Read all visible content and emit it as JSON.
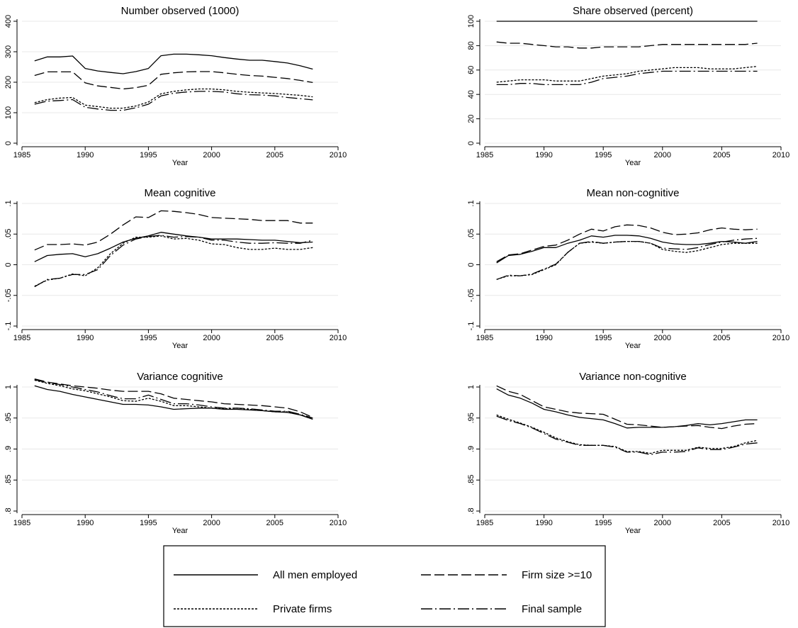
{
  "legend": [
    {
      "key": "all",
      "label": "All men employed",
      "dash": "",
      "width": 1.3
    },
    {
      "key": "size",
      "label": "Firm size >=10",
      "dash": "14,5",
      "width": 1.3
    },
    {
      "key": "priv",
      "label": "Private firms",
      "dash": "3,2",
      "width": 1.3
    },
    {
      "key": "final",
      "label": "Final sample",
      "dash": "16,4,2,4",
      "width": 1.3
    }
  ],
  "chart_data": [
    {
      "type": "line",
      "title": "Number observed (1000)",
      "xlabel": "Year",
      "ylabel": "",
      "xlim": [
        1985,
        2010
      ],
      "ylim": [
        0,
        400
      ],
      "xticks": [
        1985,
        1990,
        1995,
        2000,
        2005,
        2010
      ],
      "yticks": [
        0,
        100,
        200,
        300,
        400
      ],
      "ytick_labels": [
        "0",
        "100",
        "200",
        "300",
        "400"
      ],
      "grid": true,
      "x": [
        1986,
        1987,
        1988,
        1989,
        1990,
        1991,
        1992,
        1993,
        1994,
        1995,
        1996,
        1997,
        1998,
        1999,
        2000,
        2001,
        2002,
        2003,
        2004,
        2005,
        2006,
        2007,
        2008
      ],
      "series": [
        {
          "key": "all",
          "values": [
            270,
            283,
            283,
            286,
            245,
            237,
            232,
            228,
            235,
            245,
            287,
            292,
            292,
            290,
            287,
            281,
            276,
            272,
            272,
            268,
            263,
            254,
            243
          ]
        },
        {
          "key": "size",
          "values": [
            222,
            234,
            234,
            234,
            198,
            188,
            183,
            178,
            182,
            190,
            226,
            231,
            234,
            235,
            235,
            231,
            226,
            222,
            220,
            216,
            212,
            206,
            199
          ]
        },
        {
          "key": "priv",
          "values": [
            133,
            143,
            148,
            150,
            125,
            120,
            115,
            115,
            122,
            135,
            162,
            170,
            175,
            178,
            178,
            175,
            170,
            167,
            165,
            163,
            160,
            157,
            152
          ]
        },
        {
          "key": "final",
          "values": [
            128,
            138,
            140,
            143,
            118,
            112,
            108,
            108,
            116,
            128,
            155,
            164,
            168,
            170,
            170,
            168,
            162,
            159,
            158,
            155,
            150,
            146,
            142
          ]
        }
      ]
    },
    {
      "type": "line",
      "title": "Share observed (percent)",
      "xlabel": "Year",
      "ylabel": "",
      "xlim": [
        1985,
        2010
      ],
      "ylim": [
        0,
        100
      ],
      "xticks": [
        1985,
        1990,
        1995,
        2000,
        2005,
        2010
      ],
      "yticks": [
        0,
        20,
        40,
        60,
        80,
        100
      ],
      "ytick_labels": [
        "0",
        "20",
        "40",
        "60",
        "80",
        "100"
      ],
      "grid": true,
      "x": [
        1986,
        1987,
        1988,
        1989,
        1990,
        1991,
        1992,
        1993,
        1994,
        1995,
        1996,
        1997,
        1998,
        1999,
        2000,
        2001,
        2002,
        2003,
        2004,
        2005,
        2006,
        2007,
        2008
      ],
      "series": [
        {
          "key": "all",
          "values": [
            100,
            100,
            100,
            100,
            100,
            100,
            100,
            100,
            100,
            100,
            100,
            100,
            100,
            100,
            100,
            100,
            100,
            100,
            100,
            100,
            100,
            100,
            100
          ]
        },
        {
          "key": "size",
          "values": [
            83,
            82,
            82,
            81,
            80,
            79,
            79,
            78,
            78,
            79,
            79,
            79,
            79,
            80,
            81,
            81,
            81,
            81,
            81,
            81,
            81,
            81,
            82
          ]
        },
        {
          "key": "priv",
          "values": [
            50,
            51,
            52,
            52,
            52,
            51,
            51,
            51,
            53,
            55,
            56,
            57,
            59,
            60,
            61,
            62,
            62,
            62,
            61,
            61,
            61,
            62,
            63
          ]
        },
        {
          "key": "final",
          "values": [
            48,
            48,
            49,
            49,
            48,
            48,
            48,
            48,
            50,
            53,
            54,
            55,
            57,
            58,
            59,
            59,
            59,
            59,
            59,
            59,
            59,
            59,
            59
          ]
        }
      ]
    },
    {
      "type": "line",
      "title": "Mean cognitive",
      "xlabel": "Year",
      "ylabel": "",
      "xlim": [
        1985,
        2010
      ],
      "ylim": [
        -0.1,
        0.1
      ],
      "xticks": [
        1985,
        1990,
        1995,
        2000,
        2005,
        2010
      ],
      "yticks": [
        -0.1,
        -0.05,
        0,
        0.05,
        0.1
      ],
      "ytick_labels": [
        "-.1",
        "-.05",
        "0",
        ".05",
        ".1"
      ],
      "grid": true,
      "x": [
        1986,
        1987,
        1988,
        1989,
        1990,
        1991,
        1992,
        1993,
        1994,
        1995,
        1996,
        1997,
        1998,
        1999,
        2000,
        2001,
        2002,
        2003,
        2004,
        2005,
        2006,
        2007,
        2008
      ],
      "series": [
        {
          "key": "all",
          "values": [
            0.005,
            0.015,
            0.017,
            0.018,
            0.013,
            0.018,
            0.027,
            0.037,
            0.043,
            0.047,
            0.053,
            0.05,
            0.047,
            0.045,
            0.042,
            0.042,
            0.042,
            0.041,
            0.04,
            0.04,
            0.038,
            0.036,
            0.037
          ]
        },
        {
          "key": "size",
          "values": [
            0.024,
            0.033,
            0.033,
            0.034,
            0.032,
            0.037,
            0.05,
            0.065,
            0.078,
            0.077,
            0.088,
            0.087,
            0.085,
            0.082,
            0.077,
            0.076,
            0.075,
            0.074,
            0.072,
            0.072,
            0.072,
            0.068,
            0.068
          ]
        },
        {
          "key": "priv",
          "values": [
            -0.035,
            -0.025,
            -0.022,
            -0.015,
            -0.018,
            -0.005,
            0.018,
            0.035,
            0.045,
            0.045,
            0.047,
            0.042,
            0.043,
            0.04,
            0.034,
            0.033,
            0.028,
            0.025,
            0.025,
            0.027,
            0.025,
            0.025,
            0.028
          ]
        },
        {
          "key": "final",
          "values": [
            -0.036,
            -0.024,
            -0.022,
            -0.016,
            -0.016,
            -0.008,
            0.015,
            0.032,
            0.042,
            0.046,
            0.048,
            0.045,
            0.046,
            0.045,
            0.04,
            0.04,
            0.037,
            0.035,
            0.035,
            0.036,
            0.035,
            0.035,
            0.04
          ]
        }
      ]
    },
    {
      "type": "line",
      "title": "Mean non-cognitive",
      "xlabel": "Year",
      "ylabel": "",
      "xlim": [
        1985,
        2010
      ],
      "ylim": [
        -0.1,
        0.1
      ],
      "xticks": [
        1985,
        1990,
        1995,
        2000,
        2005,
        2010
      ],
      "yticks": [
        -0.1,
        -0.05,
        0,
        0.05,
        0.1
      ],
      "ytick_labels": [
        "-.1",
        "-.05",
        "0",
        ".05",
        ".1"
      ],
      "grid": true,
      "x": [
        1986,
        1987,
        1988,
        1989,
        1990,
        1991,
        1992,
        1993,
        1994,
        1995,
        1996,
        1997,
        1998,
        1999,
        2000,
        2001,
        2002,
        2003,
        2004,
        2005,
        2006,
        2007,
        2008
      ],
      "series": [
        {
          "key": "all",
          "values": [
            0.003,
            0.015,
            0.017,
            0.022,
            0.028,
            0.028,
            0.035,
            0.04,
            0.047,
            0.045,
            0.048,
            0.048,
            0.047,
            0.043,
            0.037,
            0.034,
            0.033,
            0.033,
            0.035,
            0.038,
            0.037,
            0.035,
            0.038
          ]
        },
        {
          "key": "size",
          "values": [
            0.005,
            0.016,
            0.018,
            0.024,
            0.03,
            0.032,
            0.04,
            0.05,
            0.058,
            0.055,
            0.062,
            0.065,
            0.064,
            0.06,
            0.053,
            0.049,
            0.05,
            0.052,
            0.057,
            0.06,
            0.058,
            0.057,
            0.058
          ]
        },
        {
          "key": "priv",
          "values": [
            -0.024,
            -0.018,
            -0.018,
            -0.016,
            -0.008,
            0.0,
            0.02,
            0.035,
            0.037,
            0.035,
            0.037,
            0.038,
            0.038,
            0.035,
            0.025,
            0.022,
            0.02,
            0.023,
            0.028,
            0.033,
            0.035,
            0.035,
            0.035
          ]
        },
        {
          "key": "final",
          "values": [
            -0.024,
            -0.017,
            -0.018,
            -0.015,
            -0.007,
            0.001,
            0.02,
            0.035,
            0.038,
            0.035,
            0.037,
            0.038,
            0.038,
            0.035,
            0.027,
            0.026,
            0.025,
            0.028,
            0.033,
            0.037,
            0.04,
            0.042,
            0.043
          ]
        }
      ]
    },
    {
      "type": "line",
      "title": "Variance cognitive",
      "xlabel": "Year",
      "ylabel": "",
      "xlim": [
        1985,
        2010
      ],
      "ylim": [
        0.8,
        1.0
      ],
      "xticks": [
        1985,
        1990,
        1995,
        2000,
        2005,
        2010
      ],
      "yticks": [
        0.8,
        0.85,
        0.9,
        0.95,
        1.0
      ],
      "ytick_labels": [
        ".8",
        ".85",
        ".9",
        ".95",
        "1"
      ],
      "grid": true,
      "x": [
        1986,
        1987,
        1988,
        1989,
        1990,
        1991,
        1992,
        1993,
        1994,
        1995,
        1996,
        1997,
        1998,
        1999,
        2000,
        2001,
        2002,
        2003,
        2004,
        2005,
        2006,
        2007,
        2008
      ],
      "series": [
        {
          "key": "all",
          "values": [
            1.002,
            0.996,
            0.993,
            0.988,
            0.984,
            0.98,
            0.976,
            0.972,
            0.972,
            0.971,
            0.968,
            0.964,
            0.965,
            0.966,
            0.966,
            0.964,
            0.964,
            0.963,
            0.962,
            0.96,
            0.959,
            0.955,
            0.948
          ]
        },
        {
          "key": "size",
          "values": [
            1.013,
            1.008,
            1.005,
            1.002,
            1.0,
            0.998,
            0.995,
            0.993,
            0.993,
            0.993,
            0.989,
            0.982,
            0.98,
            0.978,
            0.976,
            0.973,
            0.972,
            0.971,
            0.97,
            0.968,
            0.966,
            0.96,
            0.951
          ]
        },
        {
          "key": "priv",
          "values": [
            1.011,
            1.006,
            1.002,
            0.997,
            0.994,
            0.989,
            0.984,
            0.978,
            0.977,
            0.982,
            0.977,
            0.97,
            0.97,
            0.968,
            0.966,
            0.965,
            0.966,
            0.964,
            0.962,
            0.96,
            0.96,
            0.955,
            0.95
          ]
        },
        {
          "key": "final",
          "values": [
            1.012,
            1.007,
            1.004,
            1.0,
            0.996,
            0.992,
            0.986,
            0.981,
            0.981,
            0.987,
            0.98,
            0.973,
            0.973,
            0.971,
            0.968,
            0.966,
            0.966,
            0.965,
            0.963,
            0.961,
            0.961,
            0.956,
            0.95
          ]
        }
      ]
    },
    {
      "type": "line",
      "title": "Variance non-cognitive",
      "xlabel": "Year",
      "ylabel": "",
      "xlim": [
        1985,
        2010
      ],
      "ylim": [
        0.8,
        1.0
      ],
      "xticks": [
        1985,
        1990,
        1995,
        2000,
        2005,
        2010
      ],
      "yticks": [
        0.8,
        0.85,
        0.9,
        0.95,
        1.0
      ],
      "ytick_labels": [
        ".8",
        ".85",
        ".9",
        ".95",
        "1"
      ],
      "grid": true,
      "x": [
        1986,
        1987,
        1988,
        1989,
        1990,
        1991,
        1992,
        1993,
        1994,
        1995,
        1996,
        1997,
        1998,
        1999,
        2000,
        2001,
        2002,
        2003,
        2004,
        2005,
        2006,
        2007,
        2008
      ],
      "series": [
        {
          "key": "all",
          "values": [
            0.997,
            0.987,
            0.982,
            0.974,
            0.964,
            0.96,
            0.955,
            0.951,
            0.949,
            0.947,
            0.941,
            0.934,
            0.935,
            0.935,
            0.935,
            0.936,
            0.938,
            0.941,
            0.939,
            0.941,
            0.944,
            0.947,
            0.947
          ]
        },
        {
          "key": "size",
          "values": [
            1.002,
            0.993,
            0.988,
            0.978,
            0.968,
            0.964,
            0.96,
            0.958,
            0.957,
            0.956,
            0.948,
            0.94,
            0.939,
            0.937,
            0.935,
            0.936,
            0.937,
            0.938,
            0.935,
            0.933,
            0.937,
            0.94,
            0.941
          ]
        },
        {
          "key": "priv",
          "values": [
            0.955,
            0.948,
            0.942,
            0.935,
            0.927,
            0.918,
            0.912,
            0.907,
            0.906,
            0.906,
            0.904,
            0.896,
            0.896,
            0.893,
            0.898,
            0.898,
            0.898,
            0.903,
            0.901,
            0.901,
            0.904,
            0.91,
            0.914
          ]
        },
        {
          "key": "final",
          "values": [
            0.953,
            0.946,
            0.941,
            0.934,
            0.925,
            0.916,
            0.911,
            0.906,
            0.906,
            0.906,
            0.903,
            0.895,
            0.895,
            0.891,
            0.895,
            0.895,
            0.896,
            0.902,
            0.899,
            0.899,
            0.903,
            0.908,
            0.91
          ]
        }
      ]
    }
  ]
}
